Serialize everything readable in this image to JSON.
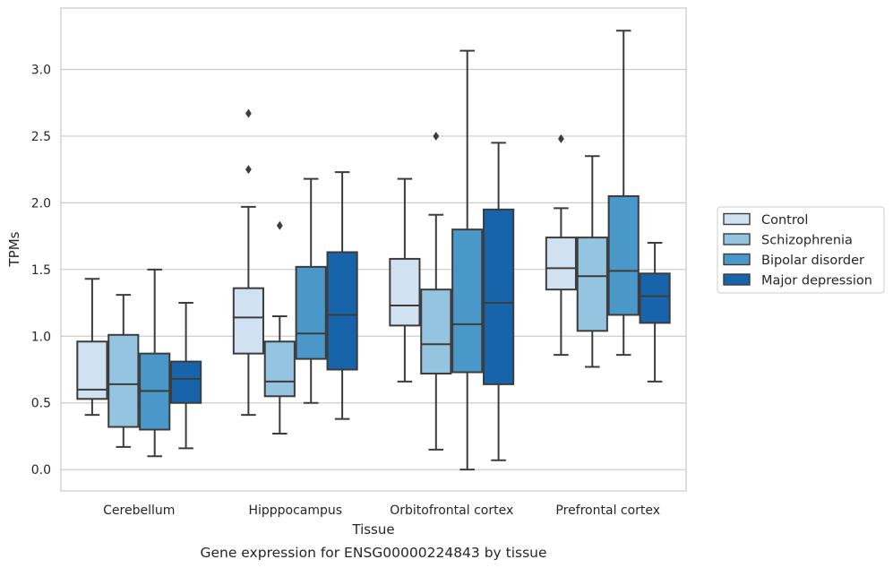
{
  "chart_data": {
    "type": "boxplot",
    "caption": "Gene expression for ENSG00000224843 by tissue",
    "xlabel": "Tissue",
    "ylabel": "TPMs",
    "ylim": [
      -0.16,
      3.46
    ],
    "yticks": [
      "0.0",
      "0.5",
      "1.0",
      "1.5",
      "2.0",
      "2.5",
      "3.0"
    ],
    "grid": "horizontal",
    "legend_position": "right",
    "categories": [
      "Cerebellum",
      "Hipppocampus",
      "Orbitofrontal cortex",
      "Prefrontal cortex"
    ],
    "series": [
      {
        "name": "Control",
        "color": "#d0e1f2",
        "boxes": [
          {
            "whislo": 0.41,
            "q1": 0.53,
            "med": 0.6,
            "q3": 0.96,
            "whishi": 1.43,
            "fliers": []
          },
          {
            "whislo": 0.41,
            "q1": 0.87,
            "med": 1.14,
            "q3": 1.36,
            "whishi": 1.97,
            "fliers": [
              2.25,
              2.67
            ]
          },
          {
            "whislo": 0.66,
            "q1": 1.08,
            "med": 1.23,
            "q3": 1.58,
            "whishi": 2.18,
            "fliers": []
          },
          {
            "whislo": 0.86,
            "q1": 1.35,
            "med": 1.51,
            "q3": 1.74,
            "whishi": 1.96,
            "fliers": [
              2.48
            ]
          }
        ]
      },
      {
        "name": "Schizophrenia",
        "color": "#94c4df",
        "boxes": [
          {
            "whislo": 0.17,
            "q1": 0.32,
            "med": 0.64,
            "q3": 1.01,
            "whishi": 1.31,
            "fliers": []
          },
          {
            "whislo": 0.27,
            "q1": 0.55,
            "med": 0.66,
            "q3": 0.96,
            "whishi": 1.15,
            "fliers": [
              1.83
            ]
          },
          {
            "whislo": 0.15,
            "q1": 0.72,
            "med": 0.94,
            "q3": 1.35,
            "whishi": 1.91,
            "fliers": [
              2.5
            ]
          },
          {
            "whislo": 0.77,
            "q1": 1.04,
            "med": 1.45,
            "q3": 1.74,
            "whishi": 2.35,
            "fliers": []
          }
        ]
      },
      {
        "name": "Bipolar disorder",
        "color": "#4a98c9",
        "boxes": [
          {
            "whislo": 0.1,
            "q1": 0.3,
            "med": 0.59,
            "q3": 0.87,
            "whishi": 1.5,
            "fliers": []
          },
          {
            "whislo": 0.5,
            "q1": 0.83,
            "med": 1.02,
            "q3": 1.52,
            "whishi": 2.18,
            "fliers": []
          },
          {
            "whislo": 0.0,
            "q1": 0.73,
            "med": 1.09,
            "q3": 1.8,
            "whishi": 3.14,
            "fliers": []
          },
          {
            "whislo": 0.86,
            "q1": 1.16,
            "med": 1.49,
            "q3": 2.05,
            "whishi": 3.29,
            "fliers": []
          }
        ]
      },
      {
        "name": "Major depression",
        "color": "#1764ab",
        "boxes": [
          {
            "whislo": 0.16,
            "q1": 0.5,
            "med": 0.68,
            "q3": 0.81,
            "whishi": 1.25,
            "fliers": []
          },
          {
            "whislo": 0.38,
            "q1": 0.75,
            "med": 1.16,
            "q3": 1.63,
            "whishi": 2.23,
            "fliers": []
          },
          {
            "whislo": 0.07,
            "q1": 0.64,
            "med": 1.25,
            "q3": 1.95,
            "whishi": 2.45,
            "fliers": []
          },
          {
            "whislo": 0.66,
            "q1": 1.1,
            "med": 1.3,
            "q3": 1.47,
            "whishi": 1.7,
            "fliers": []
          }
        ]
      }
    ]
  }
}
